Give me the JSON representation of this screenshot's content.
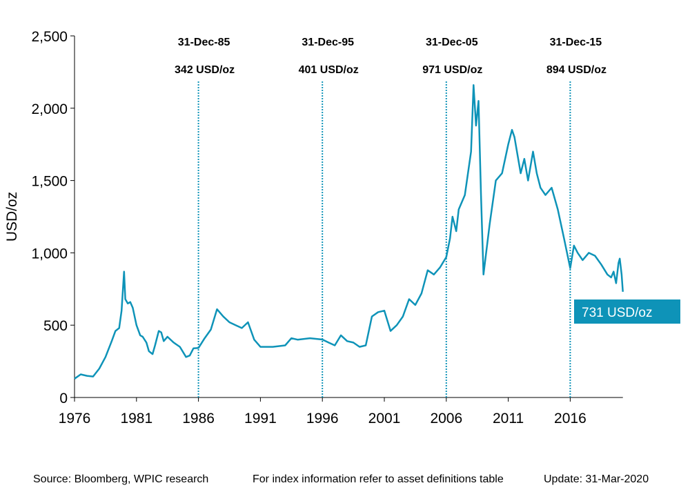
{
  "chart_data": {
    "type": "line",
    "title": "",
    "xlabel": "",
    "ylabel": "USD/oz",
    "xlim": [
      1976,
      2020.25
    ],
    "ylim": [
      0,
      2500
    ],
    "y_ticks": [
      0,
      500,
      1000,
      1500,
      2000,
      2500
    ],
    "y_tick_labels": [
      "0",
      "500",
      "1,000",
      "1,500",
      "2,000",
      "2,500"
    ],
    "x_ticks": [
      1976,
      1981,
      1986,
      1991,
      1996,
      2001,
      2006,
      2011,
      2016
    ],
    "x_tick_labels": [
      "1976",
      "1981",
      "1986",
      "1991",
      "1996",
      "2001",
      "2006",
      "2011",
      "2016"
    ],
    "grid": false,
    "series": [
      {
        "color": "#0e93b8",
        "x": [
          1976.0,
          1976.5,
          1977.0,
          1977.5,
          1978.0,
          1978.5,
          1979.0,
          1979.3,
          1979.6,
          1979.8,
          1980.0,
          1980.1,
          1980.3,
          1980.5,
          1980.7,
          1981.0,
          1981.3,
          1981.5,
          1981.8,
          1982.0,
          1982.3,
          1982.5,
          1982.8,
          1983.0,
          1983.2,
          1983.5,
          1984.0,
          1984.5,
          1985.0,
          1985.3,
          1985.6,
          1986.0,
          1986.5,
          1987.0,
          1987.5,
          1988.0,
          1988.5,
          1989.0,
          1989.5,
          1990.0,
          1990.5,
          1991.0,
          1992.0,
          1993.0,
          1993.5,
          1994.0,
          1995.0,
          1996.0,
          1996.5,
          1997.0,
          1997.5,
          1998.0,
          1998.5,
          1999.0,
          1999.5,
          2000.0,
          2000.5,
          2001.0,
          2001.5,
          2002.0,
          2002.5,
          2003.0,
          2003.5,
          2004.0,
          2004.5,
          2005.0,
          2005.5,
          2006.0,
          2006.3,
          2006.5,
          2006.8,
          2007.0,
          2007.5,
          2008.0,
          2008.2,
          2008.4,
          2008.6,
          2008.8,
          2009.0,
          2009.5,
          2010.0,
          2010.5,
          2011.0,
          2011.3,
          2011.5,
          2011.8,
          2012.0,
          2012.3,
          2012.6,
          2013.0,
          2013.3,
          2013.6,
          2014.0,
          2014.5,
          2015.0,
          2015.5,
          2016.0,
          2016.3,
          2016.6,
          2017.0,
          2017.5,
          2018.0,
          2018.5,
          2019.0,
          2019.3,
          2019.5,
          2019.7,
          2019.9,
          2020.0,
          2020.15,
          2020.25
        ],
        "values": [
          130,
          160,
          150,
          145,
          200,
          280,
          390,
          460,
          480,
          600,
          870,
          680,
          650,
          660,
          620,
          500,
          430,
          420,
          380,
          320,
          300,
          360,
          460,
          450,
          390,
          420,
          380,
          350,
          280,
          290,
          340,
          342,
          410,
          470,
          610,
          560,
          520,
          500,
          480,
          520,
          400,
          350,
          350,
          360,
          410,
          400,
          410,
          401,
          380,
          360,
          430,
          390,
          380,
          350,
          360,
          560,
          590,
          600,
          460,
          500,
          560,
          680,
          640,
          720,
          880,
          850,
          900,
          971,
          1100,
          1250,
          1150,
          1300,
          1400,
          1700,
          2160,
          1880,
          2050,
          1400,
          850,
          1200,
          1500,
          1550,
          1750,
          1850,
          1800,
          1650,
          1550,
          1650,
          1500,
          1700,
          1550,
          1450,
          1400,
          1450,
          1300,
          1100,
          894,
          1050,
          1000,
          950,
          1000,
          980,
          920,
          850,
          830,
          870,
          790,
          930,
          960,
          850,
          731
        ]
      }
    ],
    "annotations": [
      {
        "x": 1986.0,
        "date": "31-Dec-85",
        "value": "342 USD/oz"
      },
      {
        "x": 1996.0,
        "date": "31-Dec-95",
        "value": "401 USD/oz"
      },
      {
        "x": 2006.0,
        "date": "31-Dec-05",
        "value": "971 USD/oz"
      },
      {
        "x": 2016.0,
        "date": "31-Dec-15",
        "value": "894 USD/oz"
      }
    ],
    "callout": {
      "text": "731 USD/oz",
      "color": "#0e93b8"
    }
  },
  "footer": {
    "source": "Source: Bloomberg, WPIC research",
    "note": "For index information refer to asset definitions table",
    "update": "Update: 31-Mar-2020"
  }
}
